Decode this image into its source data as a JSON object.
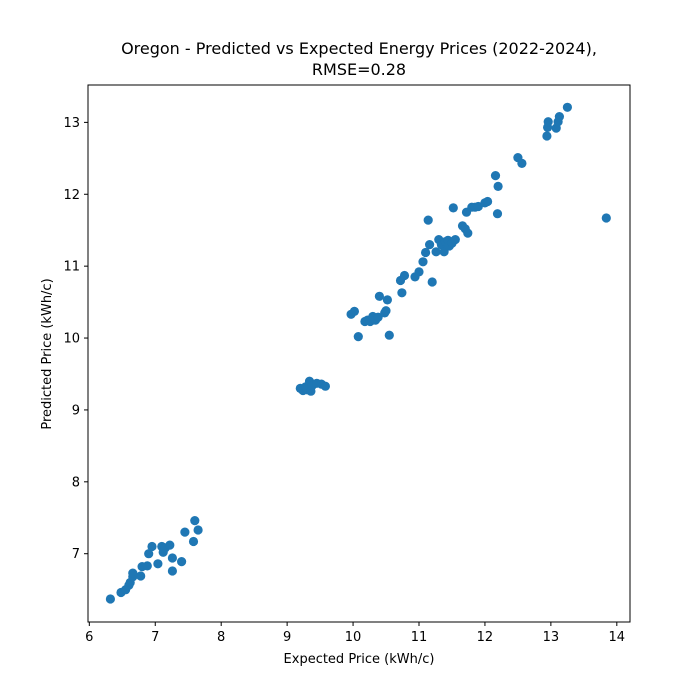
{
  "chart_data": {
    "type": "scatter",
    "title_line1": "Oregon - Predicted vs Expected Energy Prices (2022-2024),",
    "title_line2": "RMSE=0.28",
    "xlabel": "Expected Price (kWh/c)",
    "ylabel": "Predicted Price (kWh/c)",
    "xlim": [
      5.98,
      14.2
    ],
    "ylim": [
      6.05,
      13.52
    ],
    "xticks": [
      6,
      7,
      8,
      9,
      10,
      11,
      12,
      13,
      14
    ],
    "yticks": [
      7,
      8,
      9,
      10,
      11,
      12,
      13
    ],
    "grid": false,
    "marker_color": "#1f77b4",
    "points": [
      [
        6.32,
        6.37
      ],
      [
        6.48,
        6.46
      ],
      [
        6.55,
        6.5
      ],
      [
        6.6,
        6.56
      ],
      [
        6.62,
        6.6
      ],
      [
        6.66,
        6.68
      ],
      [
        6.66,
        6.73
      ],
      [
        6.78,
        6.69
      ],
      [
        6.8,
        6.82
      ],
      [
        6.88,
        6.83
      ],
      [
        6.9,
        7.0
      ],
      [
        6.95,
        7.1
      ],
      [
        7.04,
        6.86
      ],
      [
        7.1,
        7.1
      ],
      [
        7.12,
        7.02
      ],
      [
        7.15,
        7.08
      ],
      [
        7.22,
        7.12
      ],
      [
        7.26,
        6.76
      ],
      [
        7.26,
        6.94
      ],
      [
        7.4,
        6.89
      ],
      [
        7.45,
        7.3
      ],
      [
        7.58,
        7.17
      ],
      [
        7.6,
        7.46
      ],
      [
        7.65,
        7.33
      ],
      [
        9.2,
        9.3
      ],
      [
        9.24,
        9.27
      ],
      [
        9.28,
        9.32
      ],
      [
        9.3,
        9.28
      ],
      [
        9.34,
        9.4
      ],
      [
        9.36,
        9.26
      ],
      [
        9.38,
        9.34
      ],
      [
        9.45,
        9.37
      ],
      [
        9.52,
        9.36
      ],
      [
        9.58,
        9.33
      ],
      [
        9.97,
        10.33
      ],
      [
        10.02,
        10.37
      ],
      [
        10.08,
        10.02
      ],
      [
        10.18,
        10.23
      ],
      [
        10.22,
        10.25
      ],
      [
        10.26,
        10.23
      ],
      [
        10.3,
        10.3
      ],
      [
        10.34,
        10.25
      ],
      [
        10.38,
        10.29
      ],
      [
        10.4,
        10.58
      ],
      [
        10.48,
        10.35
      ],
      [
        10.5,
        10.38
      ],
      [
        10.52,
        10.53
      ],
      [
        10.55,
        10.04
      ],
      [
        10.72,
        10.8
      ],
      [
        10.74,
        10.63
      ],
      [
        10.78,
        10.87
      ],
      [
        10.94,
        10.85
      ],
      [
        11.0,
        10.92
      ],
      [
        11.06,
        11.06
      ],
      [
        11.1,
        11.19
      ],
      [
        11.14,
        11.64
      ],
      [
        11.16,
        11.3
      ],
      [
        11.2,
        10.78
      ],
      [
        11.26,
        11.2
      ],
      [
        11.3,
        11.37
      ],
      [
        11.34,
        11.3
      ],
      [
        11.38,
        11.2
      ],
      [
        11.4,
        11.34
      ],
      [
        11.44,
        11.36
      ],
      [
        11.46,
        11.28
      ],
      [
        11.5,
        11.32
      ],
      [
        11.52,
        11.81
      ],
      [
        11.55,
        11.37
      ],
      [
        11.66,
        11.56
      ],
      [
        11.7,
        11.52
      ],
      [
        11.72,
        11.75
      ],
      [
        11.74,
        11.46
      ],
      [
        11.8,
        11.82
      ],
      [
        11.85,
        11.82
      ],
      [
        11.9,
        11.83
      ],
      [
        12.0,
        11.88
      ],
      [
        12.04,
        11.9
      ],
      [
        12.16,
        12.26
      ],
      [
        12.19,
        11.73
      ],
      [
        12.2,
        12.11
      ],
      [
        12.5,
        12.51
      ],
      [
        12.56,
        12.43
      ],
      [
        12.94,
        12.81
      ],
      [
        12.95,
        12.93
      ],
      [
        12.96,
        13.01
      ],
      [
        13.08,
        12.92
      ],
      [
        13.11,
        13.01
      ],
      [
        13.13,
        13.08
      ],
      [
        13.25,
        13.21
      ],
      [
        13.84,
        11.67
      ]
    ]
  }
}
